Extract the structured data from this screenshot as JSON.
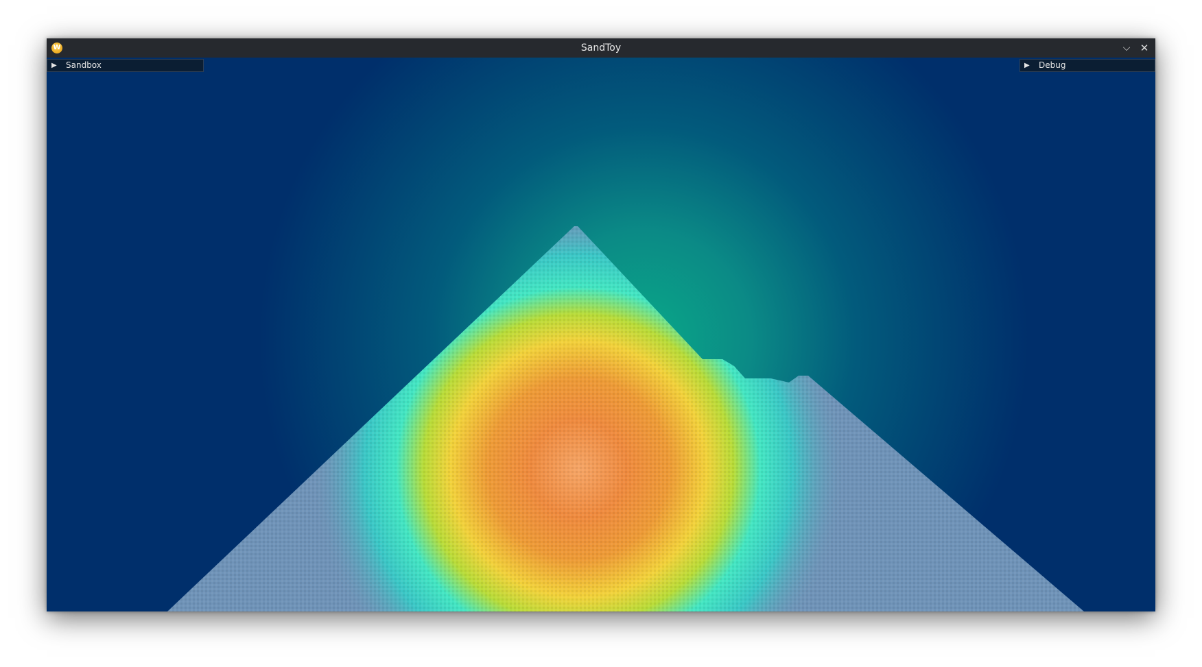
{
  "window": {
    "title": "SandToy",
    "app_icon_letter": "W",
    "minimize_glyph": "⌵",
    "close_glyph": "✕"
  },
  "panels": {
    "sandbox": {
      "label": "Sandbox",
      "arrow": "▶"
    },
    "debug": {
      "label": "Debug",
      "arrow": "▶"
    }
  },
  "colors": {
    "background": "#002f6b",
    "sand": "#6f93b8",
    "heat_hot": "#f08a3c",
    "heat_warm": "#f2d83c",
    "heat_mid": "#3fe0c8",
    "titlebar": "#26292e"
  }
}
